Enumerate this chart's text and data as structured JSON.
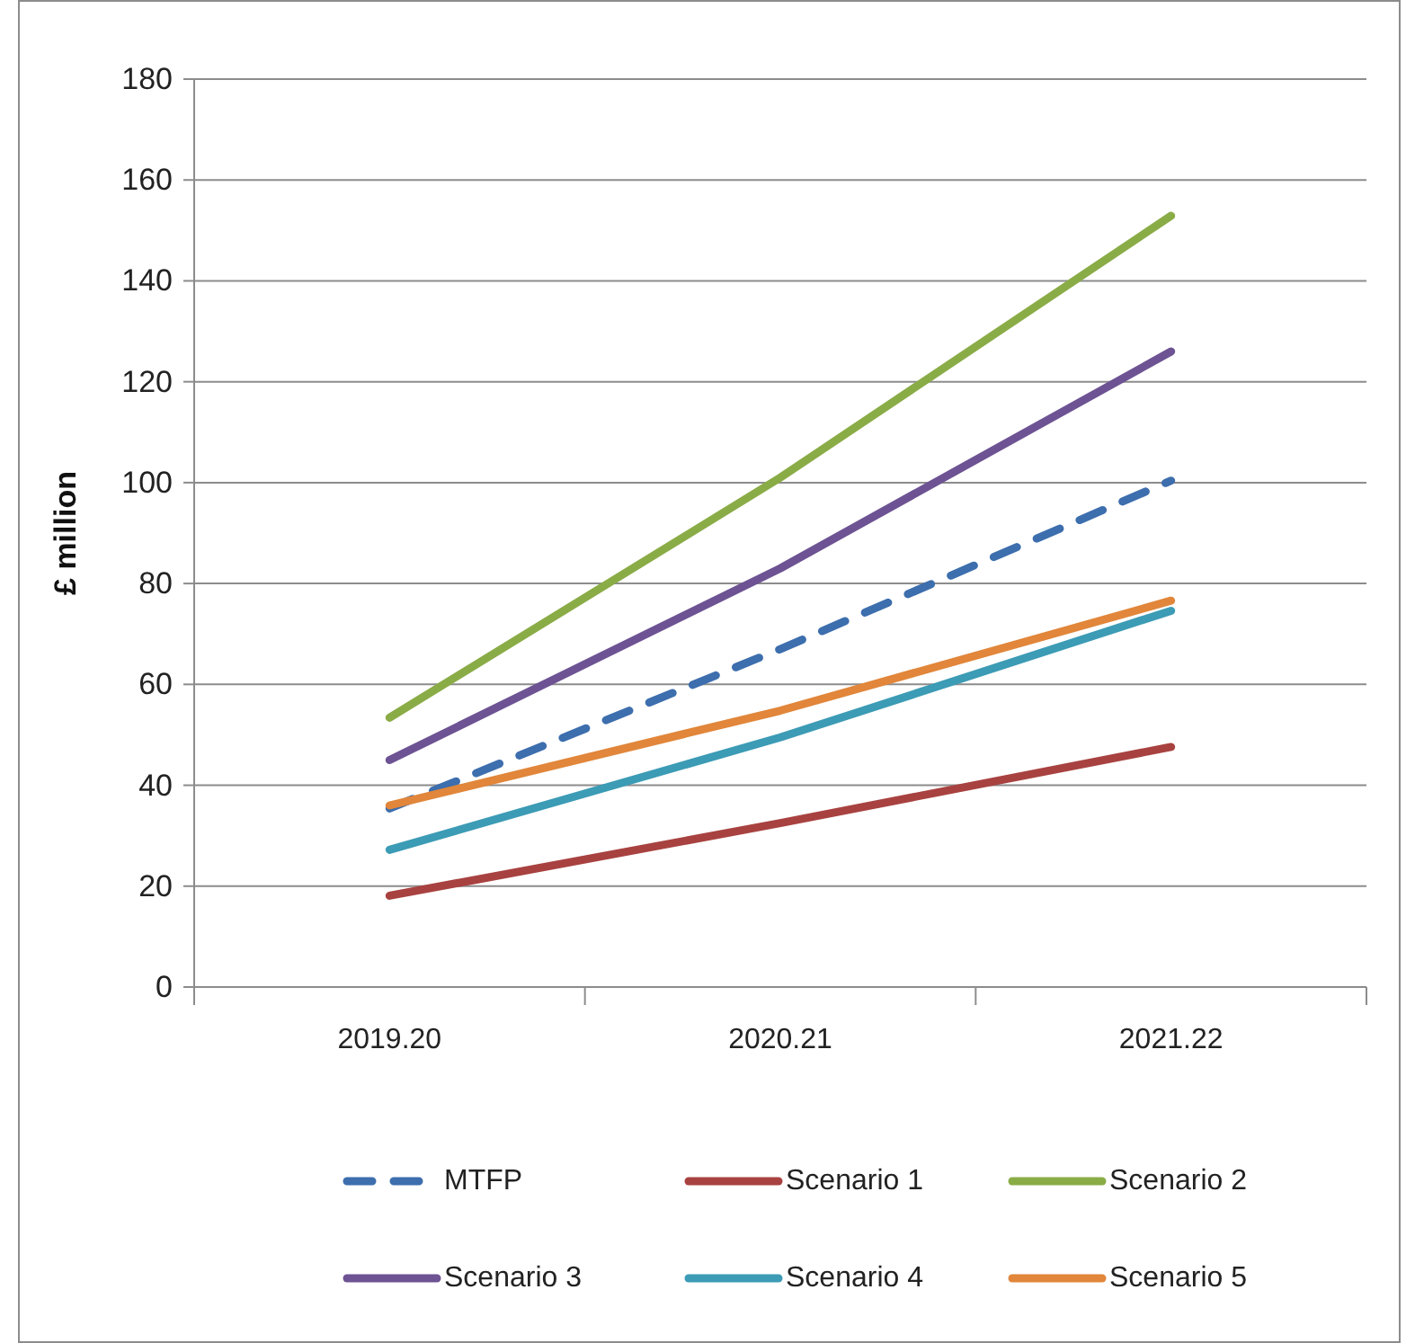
{
  "chart_data": {
    "type": "line",
    "ylabel": "£ million",
    "categories": [
      "2019.20",
      "2020.21",
      "2021.22"
    ],
    "ylim": [
      0,
      180
    ],
    "yticks": [
      0,
      20,
      40,
      60,
      80,
      100,
      120,
      140,
      160,
      180
    ],
    "grid": "y",
    "legend": "bottom",
    "series": [
      {
        "name": "MTFP",
        "color": "#3d6ead",
        "values": [
          35.4,
          67,
          100.4
        ],
        "line_style": "dashed"
      },
      {
        "name": "Scenario 1",
        "color": "#a84240",
        "values": [
          18.1,
          32.5,
          47.6
        ]
      },
      {
        "name": "Scenario 2",
        "color": "#8aac47",
        "values": [
          53.4,
          101,
          152.9
        ]
      },
      {
        "name": "Scenario 3",
        "color": "#6d5393",
        "values": [
          45,
          83,
          126
        ]
      },
      {
        "name": "Scenario 4",
        "color": "#3c9bb5",
        "values": [
          27.2,
          49.5,
          74.6
        ]
      },
      {
        "name": "Scenario 5",
        "color": "#e1863a",
        "values": [
          36,
          54.8,
          76.6
        ]
      }
    ]
  }
}
